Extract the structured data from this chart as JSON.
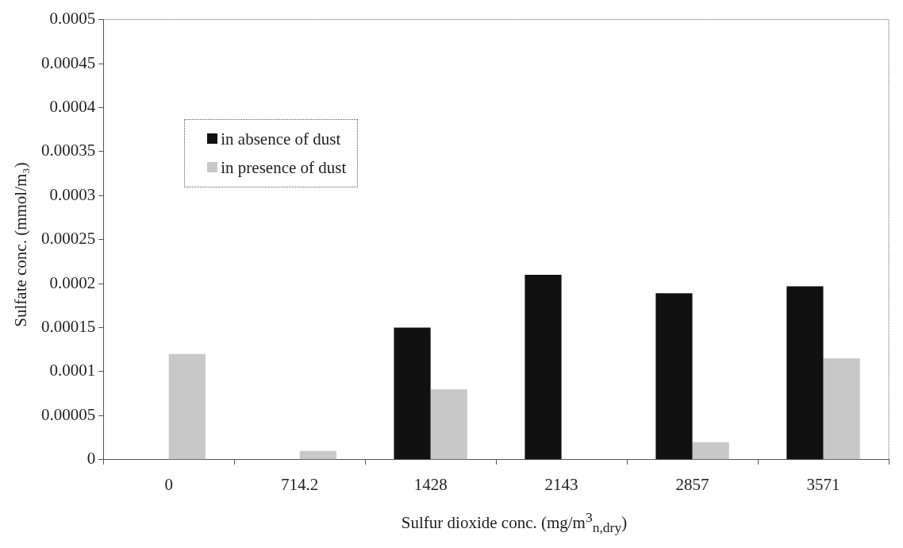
{
  "chart_data": {
    "type": "bar",
    "xlabel": "Sulfur dioxide conc. (mg/m$^{3}$$_{n,dry}$)",
    "ylabel": "Sulfate conc. (mmol/m₃)",
    "categories": [
      "0",
      "714.2",
      "1428",
      "2143",
      "2857",
      "3571"
    ],
    "series": [
      {
        "name": "in absence of dust",
        "color": "#111111",
        "values": [
          0,
          0,
          0.00015,
          0.00021,
          0.000189,
          0.000197
        ]
      },
      {
        "name": "in presence of dust",
        "color": "#c8c8c8",
        "values": [
          0.00012,
          1e-05,
          8e-05,
          0,
          2e-05,
          0.000115
        ]
      }
    ],
    "ylim": [
      0,
      0.0005
    ],
    "yticks": [
      0,
      {
        "value": 5e-05,
        "label": "0.00005"
      },
      0.0001,
      0.00015,
      0.0002,
      0.00025,
      0.0003,
      0.00035,
      0.0004,
      0.00045,
      0.0005
    ],
    "grid": false,
    "legend": "top left"
  }
}
